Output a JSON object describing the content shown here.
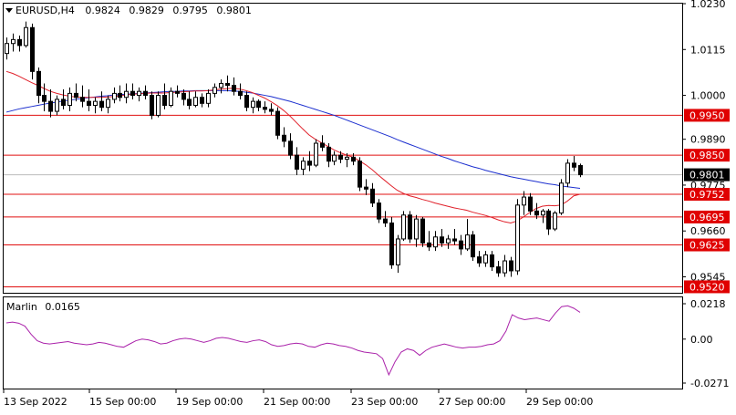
{
  "header": {
    "symbol": "EURUSD,H4",
    "open": "0.9824",
    "high": "0.9829",
    "low": "0.9795",
    "close": "0.9801"
  },
  "indicator": {
    "name": "Marlin",
    "value": "0.0165",
    "ticks": [
      "0.0218",
      "0.00",
      "-0.0271"
    ]
  },
  "colors": {
    "up_candle": "#ffffff",
    "down_candle": "#000000",
    "ma_fast": "#e0202a",
    "ma_slow": "#1c2fcf",
    "level_line": "#e01010",
    "oscillator": "#aa22aa",
    "price_label_bg": "#e00000"
  },
  "chart_data": [
    {
      "type": "candlestick",
      "title": "EURUSD,H4",
      "ylim": [
        0.9505,
        1.023
      ],
      "y_ticks": [
        "1.0230",
        "1.0115",
        "1.0000",
        "0.9890",
        "0.9775",
        "0.9660",
        "0.9545"
      ],
      "x_ticks": [
        "13 Sep 2022",
        "15 Sep 00:00",
        "19 Sep 00:00",
        "21 Sep 00:00",
        "23 Sep 00:00",
        "27 Sep 00:00",
        "29 Sep 00:00"
      ],
      "current_price": "0.9801",
      "horizontal_levels": [
        "0.9950",
        "0.9850",
        "0.9752",
        "0.9695",
        "0.9625",
        "0.9520"
      ],
      "candles": [
        [
          1.0105,
          1.0145,
          1.009,
          1.013
        ],
        [
          1.013,
          1.0155,
          1.011,
          1.014
        ],
        [
          1.014,
          1.015,
          1.011,
          1.0125
        ],
        [
          1.0125,
          1.0185,
          1.012,
          1.017
        ],
        [
          1.017,
          1.018,
          1.004,
          1.006
        ],
        [
          1.006,
          1.007,
          0.998,
          1.0
        ],
        [
          1.0,
          1.003,
          0.996,
          0.9985
        ],
        [
          0.9985,
          1.0015,
          0.9945,
          0.996
        ],
        [
          0.996,
          1.0,
          0.995,
          0.999
        ],
        [
          0.999,
          1.0015,
          0.9965,
          0.9975
        ],
        [
          0.9975,
          1.002,
          0.996,
          1.0005
        ],
        [
          1.0005,
          1.003,
          0.9985,
          0.9995
        ],
        [
          0.9995,
          1.0025,
          0.997,
          0.9985
        ],
        [
          0.9985,
          1.0015,
          0.996,
          0.9975
        ],
        [
          0.9975,
          0.9995,
          0.9955,
          0.9985
        ],
        [
          0.9985,
          1.001,
          0.996,
          0.997
        ],
        [
          0.997,
          1.0,
          0.9955,
          0.999
        ],
        [
          0.999,
          1.002,
          0.998,
          1.0005
        ],
        [
          1.0005,
          1.0025,
          0.9985,
          0.9995
        ],
        [
          0.9995,
          1.003,
          0.998,
          1.001
        ],
        [
          1.001,
          1.003,
          0.999,
          1.0
        ],
        [
          1.0,
          1.002,
          0.9985,
          1.001
        ],
        [
          1.001,
          1.0025,
          0.999,
          1.0
        ],
        [
          1.0,
          1.001,
          0.994,
          0.995
        ],
        [
          0.995,
          1.001,
          0.9945,
          1.0
        ],
        [
          1.0,
          1.003,
          0.9965,
          0.9975
        ],
        [
          0.9975,
          1.002,
          0.997,
          1.001
        ],
        [
          1.001,
          1.0025,
          0.9995,
          1.0005
        ],
        [
          1.0005,
          1.0015,
          0.9975,
          0.999
        ],
        [
          0.999,
          1.001,
          0.9965,
          0.9975
        ],
        [
          0.9975,
          1.001,
          0.997,
          0.9995
        ],
        [
          0.9995,
          1.0005,
          0.997,
          0.998
        ],
        [
          0.998,
          1.0015,
          0.997,
          1.0005
        ],
        [
          1.0005,
          1.003,
          0.9995,
          1.002
        ],
        [
          1.002,
          1.004,
          1.0005,
          1.003
        ],
        [
          1.003,
          1.005,
          1.001,
          1.0025
        ],
        [
          1.0025,
          1.0045,
          1.0,
          1.001
        ],
        [
          1.001,
          1.003,
          0.999,
          1.0
        ],
        [
          1.0,
          1.001,
          0.996,
          0.997
        ],
        [
          0.997,
          0.9995,
          0.9955,
          0.9985
        ],
        [
          0.9985,
          0.999,
          0.996,
          0.997
        ],
        [
          0.997,
          0.9985,
          0.9955,
          0.9965
        ],
        [
          0.9965,
          0.998,
          0.995,
          0.996
        ],
        [
          0.996,
          0.997,
          0.989,
          0.99
        ],
        [
          0.99,
          0.992,
          0.987,
          0.9885
        ],
        [
          0.9885,
          0.9905,
          0.984,
          0.985
        ],
        [
          0.985,
          0.987,
          0.98,
          0.9815
        ],
        [
          0.9815,
          0.9845,
          0.98,
          0.9835
        ],
        [
          0.9835,
          0.986,
          0.981,
          0.9825
        ],
        [
          0.9825,
          0.989,
          0.982,
          0.988
        ],
        [
          0.988,
          0.99,
          0.986,
          0.987
        ],
        [
          0.987,
          0.988,
          0.982,
          0.9835
        ],
        [
          0.9835,
          0.986,
          0.9825,
          0.985
        ],
        [
          0.985,
          0.986,
          0.983,
          0.984
        ],
        [
          0.984,
          0.9855,
          0.982,
          0.9845
        ],
        [
          0.9845,
          0.9855,
          0.9825,
          0.9835
        ],
        [
          0.9835,
          0.9845,
          0.976,
          0.977
        ],
        [
          0.977,
          0.979,
          0.975,
          0.9765
        ],
        [
          0.9765,
          0.978,
          0.972,
          0.973
        ],
        [
          0.973,
          0.974,
          0.968,
          0.969
        ],
        [
          0.969,
          0.971,
          0.967,
          0.968
        ],
        [
          0.968,
          0.9695,
          0.9565,
          0.9575
        ],
        [
          0.9575,
          0.965,
          0.9555,
          0.964
        ],
        [
          0.964,
          0.971,
          0.9635,
          0.97
        ],
        [
          0.97,
          0.971,
          0.963,
          0.964
        ],
        [
          0.964,
          0.97,
          0.962,
          0.969
        ],
        [
          0.969,
          0.9695,
          0.962,
          0.963
        ],
        [
          0.963,
          0.966,
          0.961,
          0.962
        ],
        [
          0.962,
          0.966,
          0.961,
          0.9645
        ],
        [
          0.9645,
          0.9665,
          0.962,
          0.963
        ],
        [
          0.963,
          0.965,
          0.9615,
          0.964
        ],
        [
          0.964,
          0.9665,
          0.9625,
          0.9635
        ],
        [
          0.9635,
          0.965,
          0.96,
          0.9615
        ],
        [
          0.9615,
          0.969,
          0.961,
          0.965
        ],
        [
          0.965,
          0.966,
          0.9585,
          0.9595
        ],
        [
          0.9595,
          0.961,
          0.957,
          0.958
        ],
        [
          0.958,
          0.961,
          0.957,
          0.96
        ],
        [
          0.96,
          0.961,
          0.956,
          0.957
        ],
        [
          0.957,
          0.9585,
          0.9545,
          0.9555
        ],
        [
          0.9555,
          0.96,
          0.9545,
          0.9585
        ],
        [
          0.9585,
          0.9595,
          0.9545,
          0.956
        ],
        [
          0.956,
          0.974,
          0.955,
          0.9725
        ],
        [
          0.9725,
          0.976,
          0.97,
          0.9745
        ],
        [
          0.9745,
          0.9755,
          0.97,
          0.971
        ],
        [
          0.971,
          0.973,
          0.969,
          0.97
        ],
        [
          0.97,
          0.9715,
          0.968,
          0.971
        ],
        [
          0.971,
          0.9715,
          0.965,
          0.9665
        ],
        [
          0.9665,
          0.971,
          0.966,
          0.9705
        ],
        [
          0.9705,
          0.979,
          0.97,
          0.978
        ],
        [
          0.978,
          0.984,
          0.977,
          0.983
        ],
        [
          0.983,
          0.9848,
          0.981,
          0.982
        ],
        [
          0.9824,
          0.9829,
          0.9795,
          0.9801
        ]
      ],
      "ma_fast": [
        1.006,
        1.0055,
        1.0048,
        1.004,
        1.0032,
        1.0025,
        1.0017,
        1.001,
        1.0005,
        1.0001,
        0.9998,
        0.9996,
        0.9995,
        0.9995,
        0.9995,
        0.9995,
        0.9996,
        0.9997,
        0.9999,
        1.0001,
        1.0003,
        1.0004,
        1.0005,
        1.0006,
        1.0006,
        1.0006,
        1.0007,
        1.0008,
        1.0009,
        1.001,
        1.0011,
        1.0011,
        1.0012,
        1.0014,
        1.0016,
        1.0017,
        1.0018,
        1.0016,
        1.0012,
        1.0007,
        1.0,
        0.9993,
        0.9984,
        0.9974,
        0.9962,
        0.9948,
        0.9932,
        0.9916,
        0.9901,
        0.989,
        0.9881,
        0.9872,
        0.9863,
        0.9856,
        0.985,
        0.9845,
        0.9836,
        0.9826,
        0.9814,
        0.98,
        0.9787,
        0.9774,
        0.9762,
        0.9754,
        0.9748,
        0.9744,
        0.9739,
        0.9735,
        0.973,
        0.9726,
        0.9722,
        0.9718,
        0.9715,
        0.9712,
        0.9707,
        0.9703,
        0.9699,
        0.9694,
        0.9688,
        0.9683,
        0.968,
        0.9685,
        0.9695,
        0.9706,
        0.9716,
        0.9722,
        0.9724,
        0.9723,
        0.9725,
        0.9735,
        0.9748,
        0.9752
      ],
      "ma_slow": [
        0.9958,
        0.9962,
        0.9966,
        0.9969,
        0.9972,
        0.9975,
        0.9978,
        0.9981,
        0.9983,
        0.9986,
        0.9988,
        0.999,
        0.9992,
        0.9994,
        0.9996,
        0.9998,
        0.9999,
        1.0001,
        1.0002,
        1.0003,
        1.0004,
        1.0005,
        1.0006,
        1.0007,
        1.0008,
        1.0009,
        1.001,
        1.001,
        1.0011,
        1.0011,
        1.0012,
        1.0012,
        1.0012,
        1.0012,
        1.0012,
        1.0012,
        1.0011,
        1.001,
        1.0008,
        1.0006,
        1.0003,
        1.0,
        0.9997,
        0.9993,
        0.9989,
        0.9985,
        0.998,
        0.9975,
        0.997,
        0.9965,
        0.996,
        0.9955,
        0.995,
        0.9944,
        0.9938,
        0.9932,
        0.9926,
        0.992,
        0.9914,
        0.9908,
        0.9902,
        0.9896,
        0.9889,
        0.9883,
        0.9877,
        0.9871,
        0.9865,
        0.9859,
        0.9853,
        0.9847,
        0.9842,
        0.9836,
        0.9831,
        0.9826,
        0.9821,
        0.9817,
        0.9812,
        0.9808,
        0.9804,
        0.98,
        0.9796,
        0.9793,
        0.979,
        0.9787,
        0.9784,
        0.9781,
        0.9778,
        0.9776,
        0.9773,
        0.9771,
        0.9769,
        0.9767
      ]
    },
    {
      "type": "line",
      "title": "Marlin 0.0165",
      "ylim": [
        -0.0271,
        0.0218
      ],
      "y_ticks": [
        "0.0218",
        "0.00",
        "-0.0271"
      ],
      "series": [
        {
          "name": "Marlin",
          "values": [
            0.01,
            0.0105,
            0.0098,
            0.008,
            0.003,
            -0.001,
            -0.0025,
            -0.003,
            -0.0025,
            -0.002,
            -0.0015,
            -0.0025,
            -0.003,
            -0.0035,
            -0.003,
            -0.002,
            -0.0025,
            -0.0035,
            -0.0045,
            -0.005,
            -0.003,
            -0.001,
            0.0,
            -0.0005,
            -0.0015,
            -0.003,
            -0.0025,
            -0.001,
            0.0,
            0.0005,
            0.0,
            -0.001,
            -0.002,
            -0.001,
            0.0005,
            0.001,
            0.0005,
            -0.0005,
            -0.0015,
            -0.002,
            -0.001,
            -0.0005,
            -0.0015,
            -0.0035,
            -0.0045,
            -0.004,
            -0.003,
            -0.0025,
            -0.003,
            -0.0045,
            -0.005,
            -0.0035,
            -0.0025,
            -0.003,
            -0.004,
            -0.0045,
            -0.0055,
            -0.007,
            -0.008,
            -0.0085,
            -0.009,
            -0.012,
            -0.022,
            -0.014,
            -0.008,
            -0.006,
            -0.007,
            -0.01,
            -0.007,
            -0.005,
            -0.004,
            -0.003,
            -0.004,
            -0.005,
            -0.0055,
            -0.005,
            -0.005,
            -0.0045,
            -0.0035,
            -0.003,
            -0.001,
            0.005,
            0.015,
            0.013,
            0.012,
            0.0125,
            0.013,
            0.012,
            0.011,
            0.016,
            0.02,
            0.0205,
            0.019,
            0.0165
          ]
        }
      ]
    }
  ]
}
